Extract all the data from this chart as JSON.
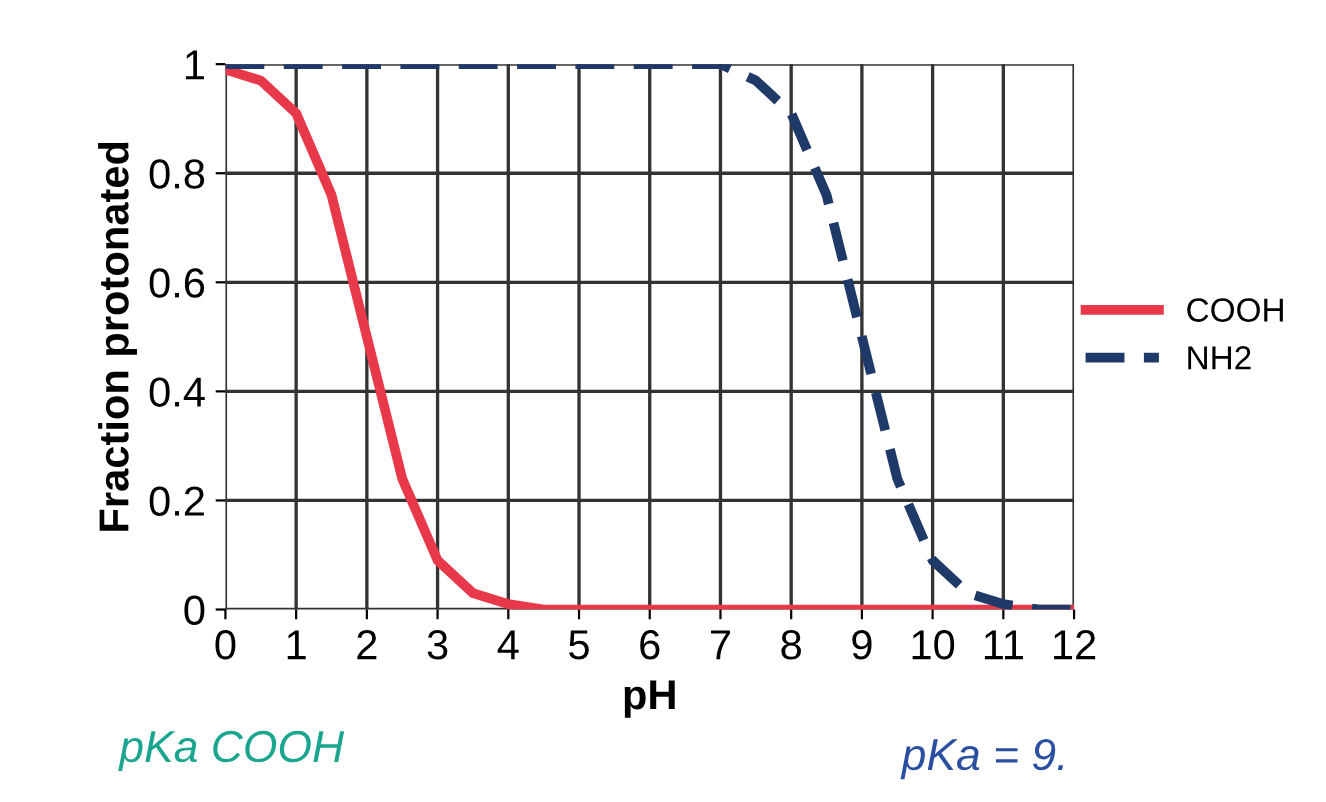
{
  "chart_data": {
    "type": "line",
    "xlabel": "pH",
    "ylabel": "Fraction protonated",
    "x": [
      0,
      0.5,
      1,
      1.5,
      2,
      2.5,
      3,
      3.5,
      4,
      4.5,
      5,
      6,
      7,
      7.5,
      8,
      8.5,
      9,
      9.5,
      10,
      10.5,
      11,
      11.5,
      12
    ],
    "series": [
      {
        "name": "COOH",
        "color": "#e8394a",
        "line_style": "solid",
        "values": [
          0.99,
          0.97,
          0.91,
          0.76,
          0.5,
          0.24,
          0.09,
          0.03,
          0.01,
          0,
          0,
          0,
          0,
          0,
          0,
          0,
          0,
          0,
          0,
          0,
          0,
          0,
          0
        ]
      },
      {
        "name": "NH2",
        "color": "#1f3a68",
        "line_style": "dashed",
        "values": [
          1,
          1,
          1,
          1,
          1,
          1,
          1,
          1,
          1,
          1,
          1,
          1,
          1,
          0.97,
          0.91,
          0.76,
          0.5,
          0.24,
          0.09,
          0.03,
          0.01,
          0,
          0
        ]
      }
    ],
    "xlim": [
      0,
      12
    ],
    "xticks": [
      0,
      1,
      2,
      3,
      4,
      5,
      6,
      7,
      8,
      9,
      10,
      11,
      12
    ],
    "ylim": [
      0,
      1
    ],
    "yticks": [
      0,
      0.2,
      0.4,
      0.6,
      0.8,
      1
    ],
    "grid": true,
    "legend": "right",
    "marker": "none",
    "annotations": [
      "pKa COOH",
      "pKa = 9."
    ]
  }
}
